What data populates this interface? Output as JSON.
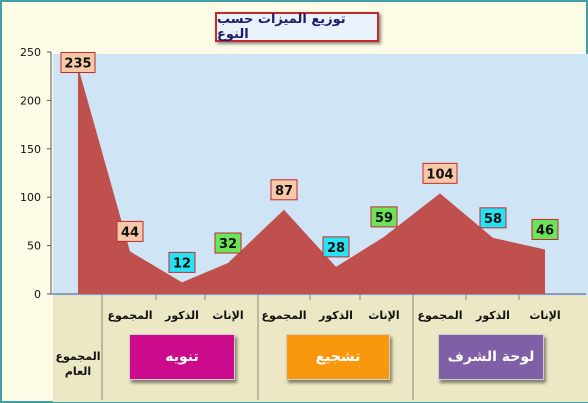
{
  "chart_data": {
    "type": "area",
    "title": "توزيع الميزات حسب النوع",
    "ylim": [
      0,
      250
    ],
    "yticks": [
      0,
      50,
      100,
      150,
      200,
      250
    ],
    "grid": false,
    "categories": [
      "المجموع العام",
      "المجموع",
      "الذكور",
      "الإناث",
      "المجموع",
      "الذكور",
      "الإناث",
      "المجموع",
      "الذكور",
      "الإناث"
    ],
    "values": [
      235,
      44,
      12,
      32,
      87,
      28,
      59,
      104,
      58,
      46
    ],
    "groups": [
      {
        "label": "تنويه",
        "color": "#cc0a8c"
      },
      {
        "label": "تشجيع",
        "color": "#f9980c"
      },
      {
        "label": "لوحة الشرف",
        "color": "#7f5fa6"
      }
    ],
    "area_color": "#c0504d",
    "label_colors": [
      "#f8c9a8",
      "#f8c9a8",
      "#24e4f4",
      "#6ce45a",
      "#f8c9a8",
      "#24e4f4",
      "#6ce45a",
      "#f8c9a8",
      "#24e4f4",
      "#6ce45a"
    ]
  }
}
